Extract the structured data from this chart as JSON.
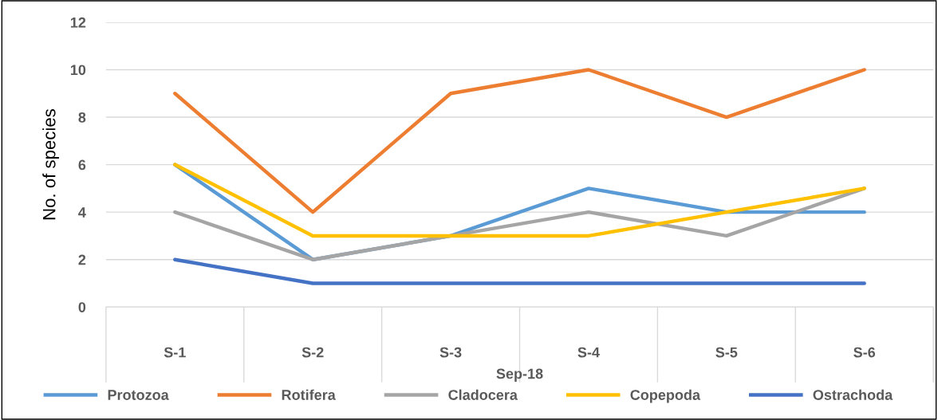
{
  "chart_data": {
    "type": "line",
    "xlabel": "Sep-18",
    "ylabel": "No. of species",
    "categories": [
      "S-1",
      "S-2",
      "S-3",
      "S-4",
      "S-5",
      "S-6"
    ],
    "series": [
      {
        "name": "Protozoa",
        "color": "#5b9bd5",
        "values": [
          6,
          2,
          3,
          5,
          4,
          4
        ]
      },
      {
        "name": "Rotifera",
        "color": "#ed7d31",
        "values": [
          9,
          4,
          9,
          10,
          8,
          10
        ]
      },
      {
        "name": "Cladocera",
        "color": "#a5a5a5",
        "values": [
          4,
          2,
          3,
          4,
          3,
          5
        ]
      },
      {
        "name": "Copepoda",
        "color": "#ffc000",
        "values": [
          6,
          3,
          3,
          3,
          4,
          5
        ]
      },
      {
        "name": "Ostrachoda",
        "color": "#4472c4",
        "values": [
          2,
          1,
          1,
          1,
          1,
          1
        ]
      }
    ],
    "ylim": [
      0,
      12
    ],
    "yticks": [
      0,
      2,
      4,
      6,
      8,
      10,
      12
    ],
    "grid": "y",
    "legend": "bottom",
    "marker": "none",
    "line_style": "solid"
  }
}
